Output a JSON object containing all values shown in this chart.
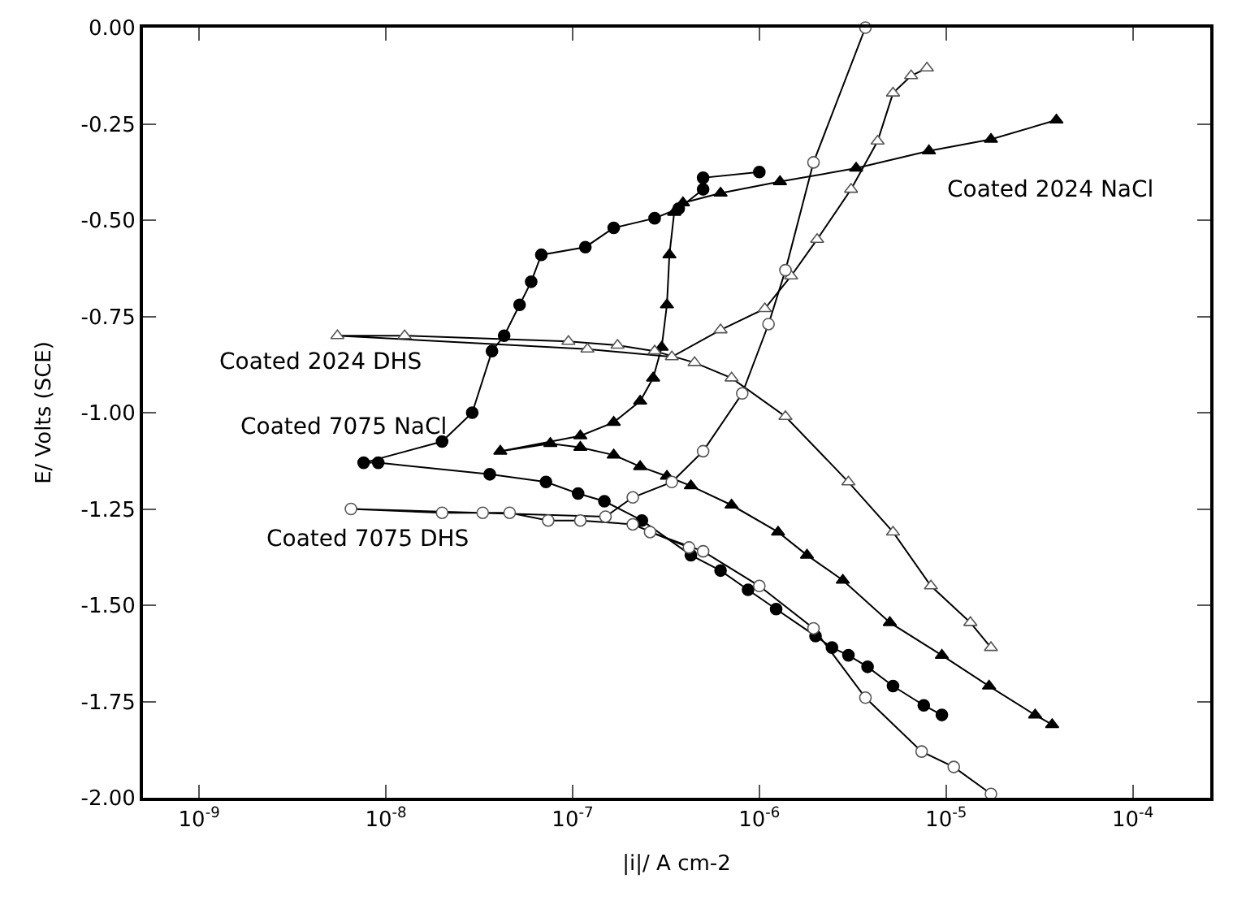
{
  "chart_data": {
    "type": "line",
    "xlabel": "|i|/ A cm-2",
    "ylabel": "E/ Volts (SCE)",
    "log": "x",
    "legend": false,
    "xlim": [
      5e-10,
      0.00026
    ],
    "ylim": [
      -2.0,
      0.0
    ],
    "xticks": [
      {
        "value": 1e-09,
        "label": "10$^{-9}$"
      },
      {
        "value": 1e-08,
        "label": "10$^{-8}$"
      },
      {
        "value": 1e-07,
        "label": "10$^{-7}$"
      },
      {
        "value": 1e-06,
        "label": "10$^{-6}$"
      },
      {
        "value": 1e-05,
        "label": "10$^{-5}$"
      },
      {
        "value": 0.0001,
        "label": "10$^{-4}$"
      }
    ],
    "yticks": [
      {
        "value": 0.0,
        "label": "0.00"
      },
      {
        "value": -0.25,
        "label": "-0.25"
      },
      {
        "value": -0.5,
        "label": "-0.50"
      },
      {
        "value": -0.75,
        "label": "-0.75"
      },
      {
        "value": -1.0,
        "label": "-1.00"
      },
      {
        "value": -1.25,
        "label": "-1.25"
      },
      {
        "value": -1.5,
        "label": "-1.50"
      },
      {
        "value": -1.75,
        "label": "-1.75"
      },
      {
        "value": -2.0,
        "label": "-2.00"
      }
    ],
    "series": [
      {
        "name": "Coated 2024 NaCl",
        "color": "#000000",
        "marker": "triangle",
        "x": [
          3.7e-05,
          3e-05,
          1.7e-05,
          9.5e-06,
          5e-06,
          2.8e-06,
          1.8e-06,
          1.26e-06,
          7.1e-07,
          4.3e-07,
          3.2e-07,
          2.3e-07,
          1.66e-07,
          1.1e-07,
          7.6e-08,
          4.1e-08,
          1.1e-07,
          1.66e-07,
          2.3e-07,
          2.7e-07,
          3e-07,
          3.2e-07,
          3.3e-07,
          3.5e-07,
          3.9e-07,
          6.2e-07,
          1.29e-06,
          3.3e-06,
          8.1e-06,
          1.74e-05,
          3.9e-05
        ],
        "values": [
          -1.81,
          -1.785,
          -1.71,
          -1.63,
          -1.545,
          -1.435,
          -1.37,
          -1.31,
          -1.24,
          -1.19,
          -1.165,
          -1.14,
          -1.11,
          -1.09,
          -1.08,
          -1.1,
          -1.06,
          -1.025,
          -0.97,
          -0.91,
          -0.83,
          -0.72,
          -0.59,
          -0.48,
          -0.455,
          -0.43,
          -0.4,
          -0.365,
          -0.32,
          -0.29,
          -0.24
        ]
      },
      {
        "name": "Coated 2024 DHS",
        "color": "#ffffff",
        "marker": "triangle",
        "x": [
          1.74e-05,
          1.35e-05,
          8.3e-06,
          5.2e-06,
          3e-06,
          1.38e-06,
          7.1e-07,
          4.5e-07,
          2.75e-07,
          1.74e-07,
          9.5e-08,
          1.26e-08,
          5.5e-09,
          1.2e-07,
          3.4e-07,
          6.2e-07,
          1.07e-06,
          1.48e-06,
          2.04e-06,
          3.1e-06,
          4.3e-06,
          5.2e-06,
          6.5e-06,
          7.9e-06
        ],
        "values": [
          -1.61,
          -1.545,
          -1.45,
          -1.31,
          -1.18,
          -1.01,
          -0.91,
          -0.87,
          -0.84,
          -0.825,
          -0.815,
          -0.8,
          -0.8,
          -0.835,
          -0.855,
          -0.785,
          -0.73,
          -0.645,
          -0.55,
          -0.42,
          -0.295,
          -0.17,
          -0.125,
          -0.105
        ]
      },
      {
        "name": "Coated 7075 NaCl",
        "color": "#000000",
        "marker": "circle",
        "x": [
          9.5e-06,
          7.6e-06,
          5.2e-06,
          3.8e-06,
          3e-06,
          2.45e-06,
          2e-06,
          1.23e-06,
          8.7e-07,
          6.2e-07,
          4.3e-07,
          2.35e-07,
          1.48e-07,
          1.07e-07,
          7.2e-08,
          3.6e-08,
          9.1e-09,
          7.6e-09,
          2e-08,
          2.9e-08,
          3.7e-08,
          4.3e-08,
          5.2e-08,
          6e-08,
          6.8e-08,
          1.17e-07,
          1.66e-07,
          2.75e-07,
          3.7e-07,
          5e-07,
          5e-07,
          1e-06
        ],
        "values": [
          -1.785,
          -1.76,
          -1.71,
          -1.66,
          -1.63,
          -1.61,
          -1.58,
          -1.51,
          -1.46,
          -1.41,
          -1.37,
          -1.28,
          -1.23,
          -1.21,
          -1.18,
          -1.16,
          -1.13,
          -1.13,
          -1.075,
          -1.0,
          -0.84,
          -0.8,
          -0.72,
          -0.66,
          -0.59,
          -0.57,
          -0.52,
          -0.495,
          -0.47,
          -0.42,
          -0.39,
          -0.375
        ]
      },
      {
        "name": "Coated 7075 DHS",
        "color": "#ffffff",
        "marker": "circle",
        "x": [
          1.74e-05,
          1.1e-05,
          7.4e-06,
          3.7e-06,
          1.95e-06,
          1e-06,
          5e-07,
          2.6e-07,
          4.2e-07,
          2.1e-07,
          1.1e-07,
          7.4e-08,
          4.6e-08,
          3.3e-08,
          2e-08,
          6.5e-09,
          1.5e-07,
          2.1e-07,
          3.4e-07,
          5e-07,
          8.1e-07,
          1.12e-06,
          1.38e-06,
          1.95e-06,
          3.7e-06
        ],
        "values": [
          -1.99,
          -1.92,
          -1.88,
          -1.74,
          -1.56,
          -1.45,
          -1.36,
          -1.31,
          -1.35,
          -1.29,
          -1.28,
          -1.28,
          -1.26,
          -1.26,
          -1.26,
          -1.25,
          -1.27,
          -1.22,
          -1.18,
          -1.1,
          -0.95,
          -0.77,
          -0.63,
          -0.35,
          0.0
        ]
      }
    ]
  }
}
